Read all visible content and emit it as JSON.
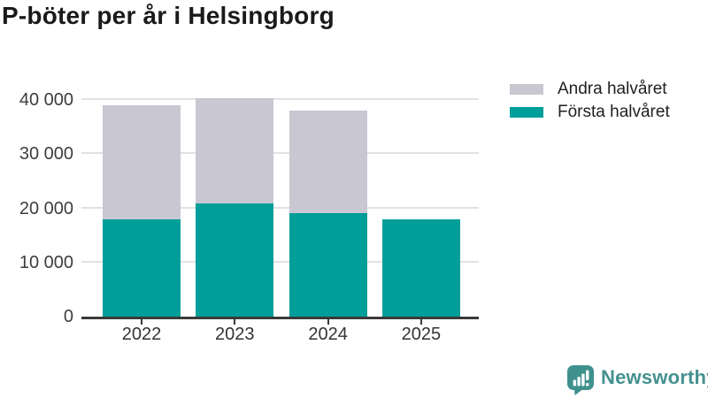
{
  "title": "P-böter per år i Helsingborg",
  "legend": {
    "items": [
      {
        "label": "Andra halvåret",
        "color": "#c8c7d2"
      },
      {
        "label": "Första halvåret",
        "color": "#009e99"
      }
    ]
  },
  "chart_data": {
    "type": "bar",
    "stacked": true,
    "title": "P-böter per år i Helsingborg",
    "categories": [
      "2022",
      "2023",
      "2024",
      "2025"
    ],
    "series": [
      {
        "name": "Första halvåret",
        "color": "#009e99",
        "values": [
          18000,
          21000,
          19200,
          18000
        ]
      },
      {
        "name": "Andra halvåret",
        "color": "#c8c7d2",
        "values": [
          21000,
          19400,
          18900,
          0
        ]
      }
    ],
    "totals": [
      39000,
      40400,
      38100,
      18000
    ],
    "ylim": [
      0,
      42000
    ],
    "yticks": [
      {
        "value": 0,
        "label": "0"
      },
      {
        "value": 10000,
        "label": "10 000"
      },
      {
        "value": 20000,
        "label": "20 000"
      },
      {
        "value": 30000,
        "label": "30 000"
      },
      {
        "value": 40000,
        "label": "40 000"
      }
    ],
    "grid": "horizontal",
    "legend_position": "top-right"
  },
  "footer": {
    "brand": "Newsworthy"
  },
  "colors": {
    "teal": "#009e99",
    "gray": "#c8c7d2",
    "axis": "#3a3a3a",
    "gridline": "#e2e2e6",
    "tick_text": "#3d3d3d",
    "title_text": "#1a1a1a",
    "brand": "#45918f"
  }
}
